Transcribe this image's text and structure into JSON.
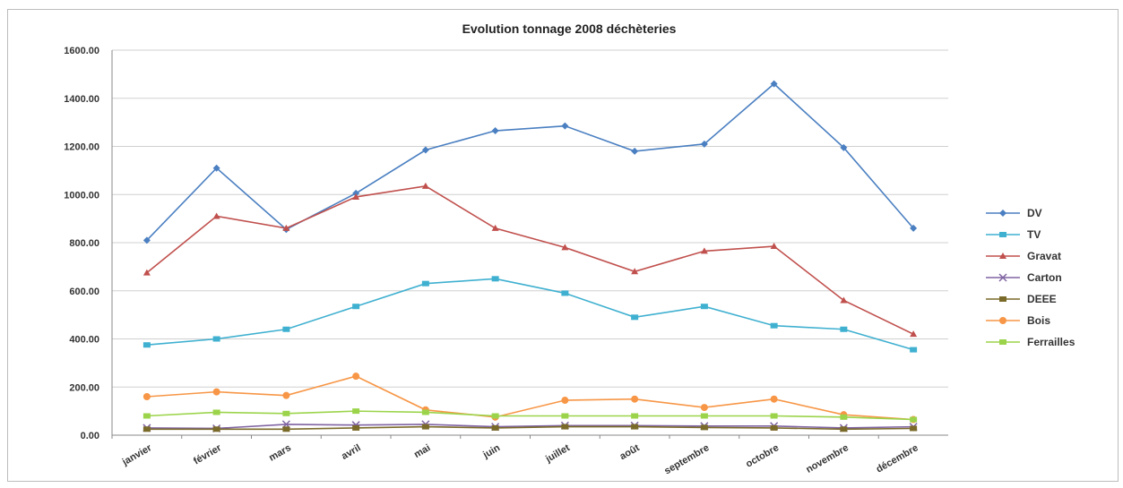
{
  "chart_data": {
    "type": "line",
    "title": "Evolution tonnage 2008 déchèteries",
    "xlabel": "",
    "ylabel": "",
    "ylim": [
      0,
      1600
    ],
    "yticks": [
      "0.00",
      "200.00",
      "400.00",
      "600.00",
      "800.00",
      "1000.00",
      "1200.00",
      "1400.00",
      "1600.00"
    ],
    "categories": [
      "janvier",
      "février",
      "mars",
      "avril",
      "mai",
      "juin",
      "juillet",
      "août",
      "septembre",
      "octobre",
      "novembre",
      "décembre"
    ],
    "grid": "horizontal",
    "legend_position": "right",
    "series": [
      {
        "name": "DV",
        "color": "#4a7fc1",
        "marker": "diamond",
        "values": [
          810,
          1110,
          855,
          1005,
          1185,
          1265,
          1285,
          1180,
          1210,
          1460,
          1195,
          860
        ]
      },
      {
        "name": "TV",
        "color": "#3fb0d0",
        "marker": "square",
        "values": [
          375,
          400,
          440,
          535,
          630,
          650,
          590,
          490,
          535,
          455,
          440,
          355
        ]
      },
      {
        "name": "Gravat",
        "color": "#c0504d",
        "marker": "triangle",
        "values": [
          675,
          910,
          860,
          990,
          1035,
          860,
          780,
          680,
          765,
          785,
          560,
          420
        ]
      },
      {
        "name": "Carton",
        "color": "#8064a2",
        "marker": "x",
        "values": [
          30,
          28,
          45,
          42,
          45,
          35,
          40,
          40,
          38,
          38,
          30,
          35
        ]
      },
      {
        "name": "DEEE",
        "color": "#7a6a2a",
        "marker": "square",
        "values": [
          25,
          25,
          25,
          30,
          35,
          30,
          35,
          35,
          32,
          30,
          25,
          28
        ]
      },
      {
        "name": "Bois",
        "color": "#f79646",
        "marker": "circle",
        "values": [
          160,
          180,
          165,
          245,
          105,
          75,
          145,
          150,
          115,
          150,
          85,
          65
        ]
      },
      {
        "name": "Ferrailles",
        "color": "#9bd44a",
        "marker": "square",
        "values": [
          80,
          95,
          90,
          100,
          95,
          80,
          80,
          80,
          80,
          80,
          75,
          65
        ]
      }
    ]
  }
}
